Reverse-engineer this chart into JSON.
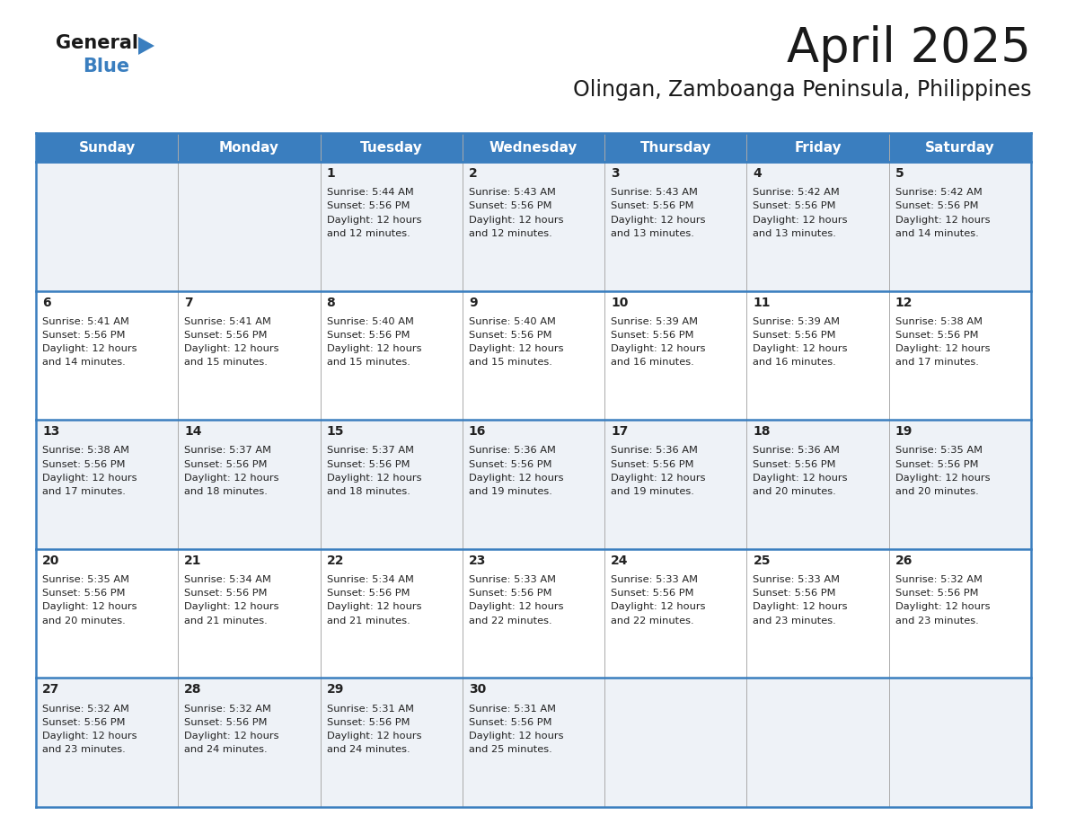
{
  "title": "April 2025",
  "subtitle": "Olingan, Zamboanga Peninsula, Philippines",
  "days_of_week": [
    "Sunday",
    "Monday",
    "Tuesday",
    "Wednesday",
    "Thursday",
    "Friday",
    "Saturday"
  ],
  "header_bg": "#3a7ebf",
  "header_text": "#ffffff",
  "row_bg_odd": "#eef2f7",
  "row_bg_even": "#ffffff",
  "border_color": "#3a7ebf",
  "cell_border": "#aaaaaa",
  "day_number_color": "#222222",
  "text_color": "#222222",
  "calendar_data": [
    [
      null,
      null,
      {
        "day": 1,
        "sunrise": "5:44 AM",
        "sunset": "5:56 PM",
        "daylight_mins": "12 minutes."
      },
      {
        "day": 2,
        "sunrise": "5:43 AM",
        "sunset": "5:56 PM",
        "daylight_mins": "12 minutes."
      },
      {
        "day": 3,
        "sunrise": "5:43 AM",
        "sunset": "5:56 PM",
        "daylight_mins": "13 minutes."
      },
      {
        "day": 4,
        "sunrise": "5:42 AM",
        "sunset": "5:56 PM",
        "daylight_mins": "13 minutes."
      },
      {
        "day": 5,
        "sunrise": "5:42 AM",
        "sunset": "5:56 PM",
        "daylight_mins": "14 minutes."
      }
    ],
    [
      {
        "day": 6,
        "sunrise": "5:41 AM",
        "sunset": "5:56 PM",
        "daylight_mins": "14 minutes."
      },
      {
        "day": 7,
        "sunrise": "5:41 AM",
        "sunset": "5:56 PM",
        "daylight_mins": "15 minutes."
      },
      {
        "day": 8,
        "sunrise": "5:40 AM",
        "sunset": "5:56 PM",
        "daylight_mins": "15 minutes."
      },
      {
        "day": 9,
        "sunrise": "5:40 AM",
        "sunset": "5:56 PM",
        "daylight_mins": "15 minutes."
      },
      {
        "day": 10,
        "sunrise": "5:39 AM",
        "sunset": "5:56 PM",
        "daylight_mins": "16 minutes."
      },
      {
        "day": 11,
        "sunrise": "5:39 AM",
        "sunset": "5:56 PM",
        "daylight_mins": "16 minutes."
      },
      {
        "day": 12,
        "sunrise": "5:38 AM",
        "sunset": "5:56 PM",
        "daylight_mins": "17 minutes."
      }
    ],
    [
      {
        "day": 13,
        "sunrise": "5:38 AM",
        "sunset": "5:56 PM",
        "daylight_mins": "17 minutes."
      },
      {
        "day": 14,
        "sunrise": "5:37 AM",
        "sunset": "5:56 PM",
        "daylight_mins": "18 minutes."
      },
      {
        "day": 15,
        "sunrise": "5:37 AM",
        "sunset": "5:56 PM",
        "daylight_mins": "18 minutes."
      },
      {
        "day": 16,
        "sunrise": "5:36 AM",
        "sunset": "5:56 PM",
        "daylight_mins": "19 minutes."
      },
      {
        "day": 17,
        "sunrise": "5:36 AM",
        "sunset": "5:56 PM",
        "daylight_mins": "19 minutes."
      },
      {
        "day": 18,
        "sunrise": "5:36 AM",
        "sunset": "5:56 PM",
        "daylight_mins": "20 minutes."
      },
      {
        "day": 19,
        "sunrise": "5:35 AM",
        "sunset": "5:56 PM",
        "daylight_mins": "20 minutes."
      }
    ],
    [
      {
        "day": 20,
        "sunrise": "5:35 AM",
        "sunset": "5:56 PM",
        "daylight_mins": "20 minutes."
      },
      {
        "day": 21,
        "sunrise": "5:34 AM",
        "sunset": "5:56 PM",
        "daylight_mins": "21 minutes."
      },
      {
        "day": 22,
        "sunrise": "5:34 AM",
        "sunset": "5:56 PM",
        "daylight_mins": "21 minutes."
      },
      {
        "day": 23,
        "sunrise": "5:33 AM",
        "sunset": "5:56 PM",
        "daylight_mins": "22 minutes."
      },
      {
        "day": 24,
        "sunrise": "5:33 AM",
        "sunset": "5:56 PM",
        "daylight_mins": "22 minutes."
      },
      {
        "day": 25,
        "sunrise": "5:33 AM",
        "sunset": "5:56 PM",
        "daylight_mins": "23 minutes."
      },
      {
        "day": 26,
        "sunrise": "5:32 AM",
        "sunset": "5:56 PM",
        "daylight_mins": "23 minutes."
      }
    ],
    [
      {
        "day": 27,
        "sunrise": "5:32 AM",
        "sunset": "5:56 PM",
        "daylight_mins": "23 minutes."
      },
      {
        "day": 28,
        "sunrise": "5:32 AM",
        "sunset": "5:56 PM",
        "daylight_mins": "24 minutes."
      },
      {
        "day": 29,
        "sunrise": "5:31 AM",
        "sunset": "5:56 PM",
        "daylight_mins": "24 minutes."
      },
      {
        "day": 30,
        "sunrise": "5:31 AM",
        "sunset": "5:56 PM",
        "daylight_mins": "25 minutes."
      },
      null,
      null,
      null
    ]
  ]
}
